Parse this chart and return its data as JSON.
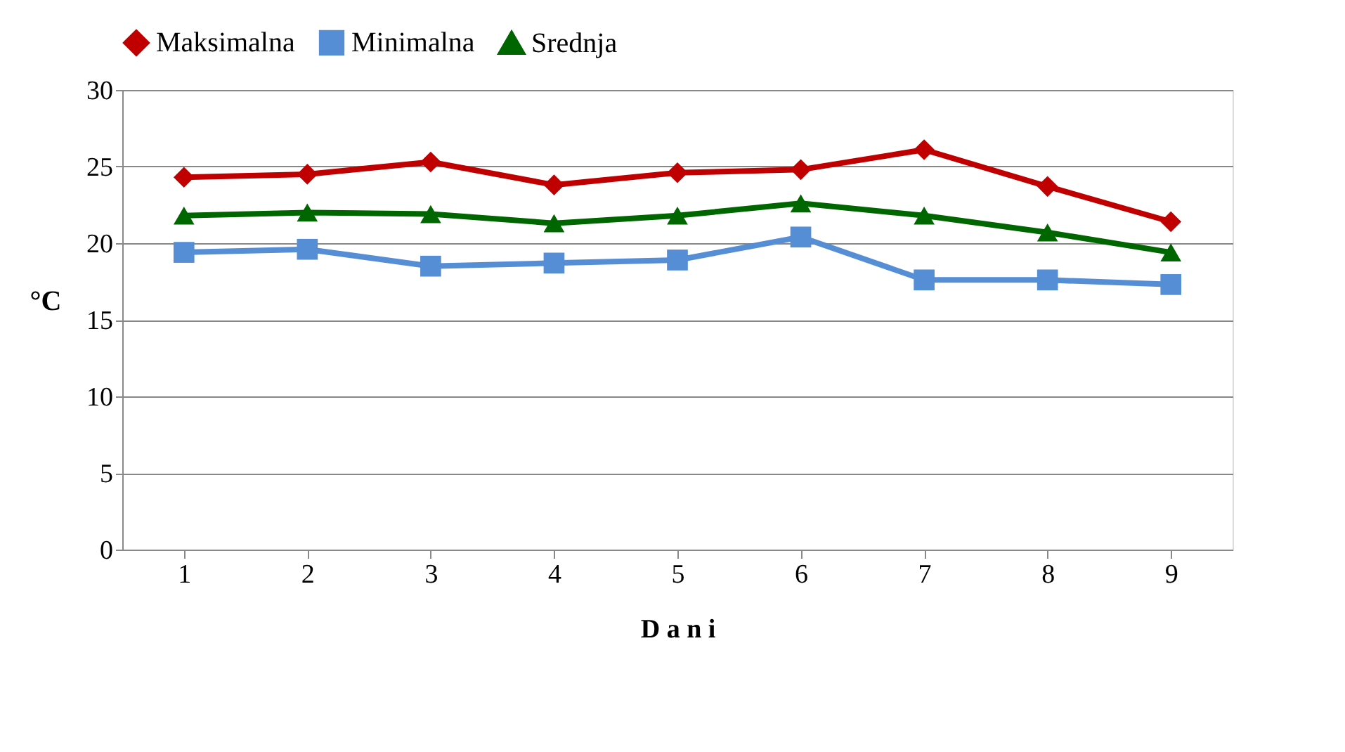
{
  "chart_data": {
    "type": "line",
    "xlabel": "D a n i",
    "ylabel": "°C",
    "categories": [
      "1",
      "2",
      "3",
      "4",
      "5",
      "6",
      "7",
      "8",
      "9"
    ],
    "series": [
      {
        "name": "Maksimalna",
        "color": "#c00000",
        "marker": "diamond",
        "values": [
          24.3,
          24.5,
          25.3,
          23.8,
          24.6,
          24.8,
          26.1,
          23.7,
          21.4
        ]
      },
      {
        "name": "Minimalna",
        "color": "#558ed5",
        "marker": "square",
        "values": [
          19.4,
          19.6,
          18.5,
          18.7,
          18.9,
          20.4,
          17.6,
          17.6,
          17.3
        ]
      },
      {
        "name": "Srednja",
        "color": "#006600",
        "marker": "triangle",
        "values": [
          21.8,
          22.0,
          21.9,
          21.3,
          21.8,
          22.6,
          21.8,
          20.7,
          19.4
        ]
      }
    ],
    "ylim": [
      0,
      30
    ],
    "yticks": [
      0,
      5,
      10,
      15,
      20,
      25,
      30
    ],
    "grid": "y",
    "legend": "top"
  }
}
